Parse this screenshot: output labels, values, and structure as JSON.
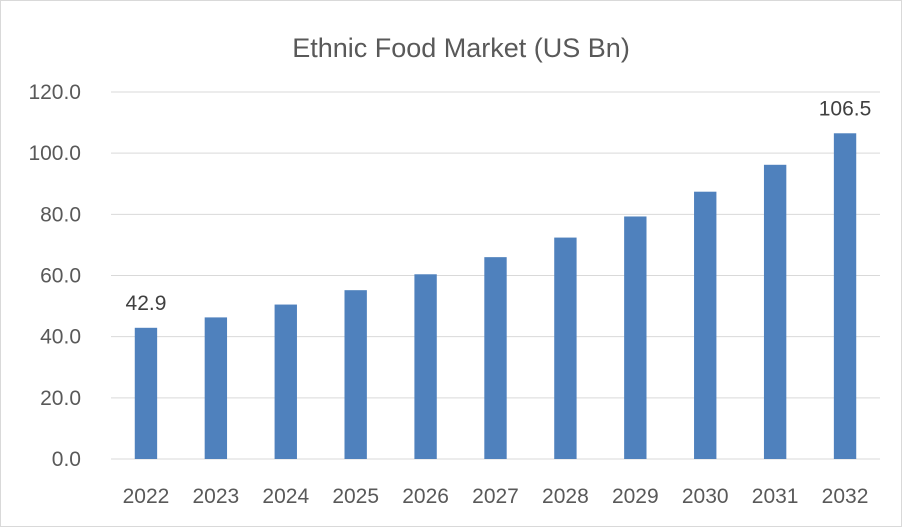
{
  "chart_data": {
    "type": "bar",
    "title": "Ethnic Food Market (US Bn)",
    "categories": [
      "2022",
      "2023",
      "2024",
      "2025",
      "2026",
      "2027",
      "2028",
      "2029",
      "2030",
      "2031",
      "2032"
    ],
    "series": [
      {
        "values": [
          42.9,
          46.3,
          50.5,
          55.2,
          60.4,
          66.0,
          72.4,
          79.3,
          87.4,
          96.2,
          106.5
        ]
      }
    ],
    "data_labels": [
      {
        "index": 0,
        "text": "42.9"
      },
      {
        "index": 10,
        "text": "106.5"
      }
    ],
    "ylim": [
      0,
      120
    ],
    "ytick_step": 20,
    "ytick_labels": [
      "0.0",
      "20.0",
      "40.0",
      "60.0",
      "80.0",
      "100.0",
      "120.0"
    ],
    "xlabel": "",
    "ylabel": "",
    "grid": true,
    "legend": "none",
    "bar_color": "#4f81bd"
  }
}
